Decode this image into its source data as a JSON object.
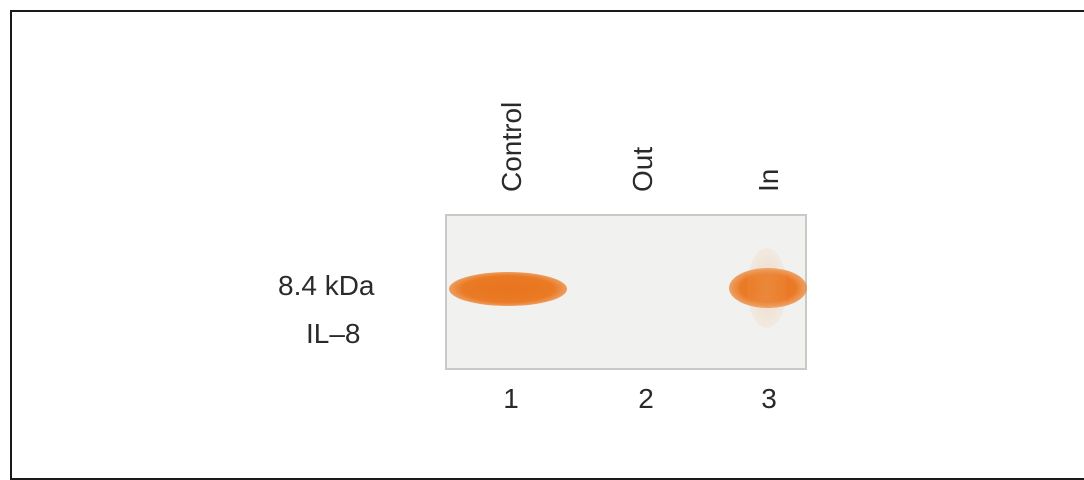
{
  "lanes": [
    {
      "label": "Control",
      "number": "1",
      "band_intensity": 1.0
    },
    {
      "label": "Out",
      "number": "2",
      "band_intensity": 0.0
    },
    {
      "label": "In",
      "number": "3",
      "band_intensity": 0.9
    }
  ],
  "marker": {
    "size": "8.4 kDa",
    "protein": "IL–8"
  },
  "colors": {
    "band": "#e8741e",
    "gel_background": "#f1f1ef",
    "frame": "#1a1a1a"
  }
}
